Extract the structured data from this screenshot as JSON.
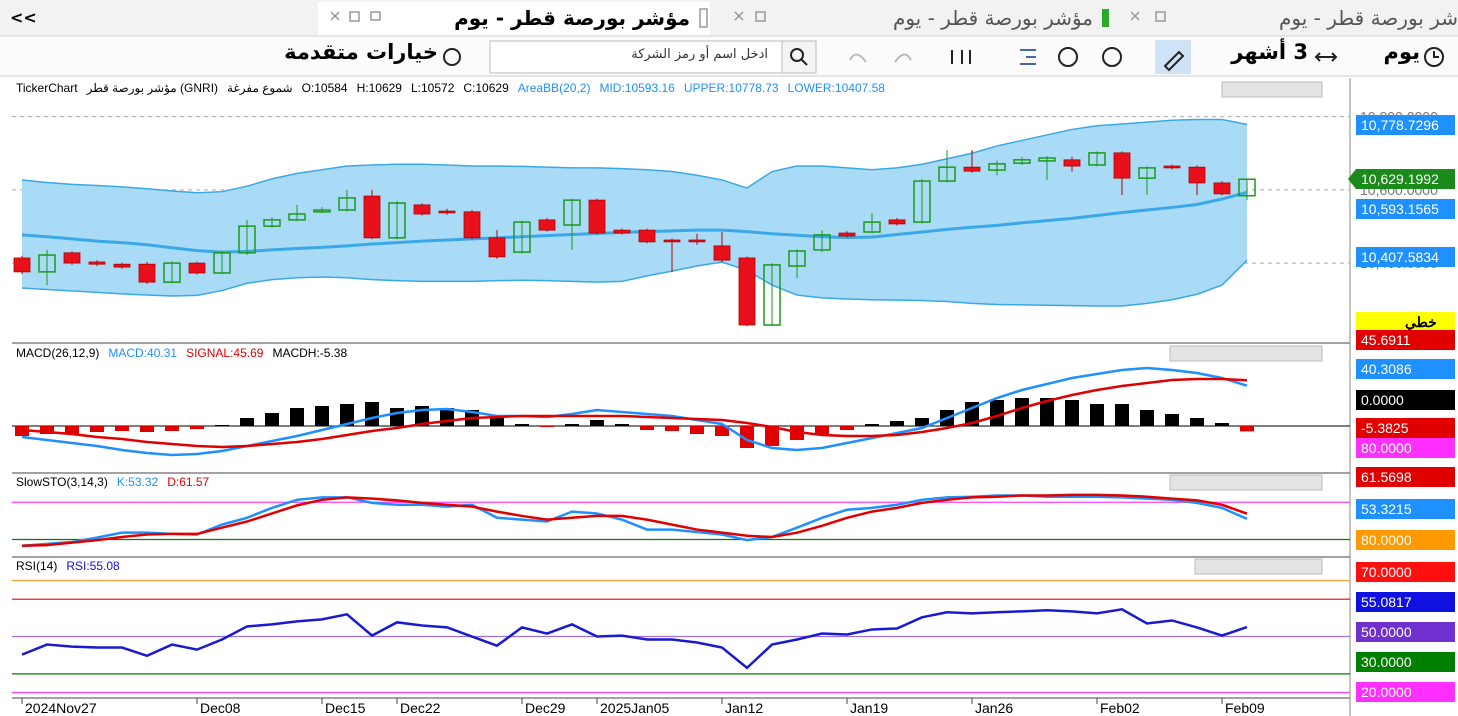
{
  "collapse": "<<",
  "tabs": [
    "مؤشر بورصة قطر - يوم",
    "مؤشر بورصة قطر - يوم",
    "شر بورصة قطر - يوم"
  ],
  "toolbar": {
    "period": "يوم",
    "range": "3 أشهر",
    "search_placeholder": "ادخل اسم أو رمز الشركة",
    "advanced": "خيارات متقدمة"
  },
  "x_labels": [
    "2024Nov27",
    null,
    null,
    null,
    null,
    null,
    null,
    "Dec08",
    null,
    null,
    null,
    null,
    "Dec15",
    null,
    null,
    "Dec22",
    null,
    null,
    null,
    null,
    "Dec29",
    null,
    null,
    "2025Jan05",
    null,
    null,
    null,
    null,
    "Jan12",
    null,
    null,
    null,
    null,
    "Jan19",
    null,
    null,
    null,
    null,
    "Jan26",
    null,
    null,
    null,
    null,
    "Feb02",
    null,
    null,
    null,
    null,
    "Feb09",
    null
  ],
  "price_panel": {
    "legend": [
      {
        "text": "TickerChart",
        "color": "#000000"
      },
      {
        "text": "مؤشر بورصة قطر (GNRI)",
        "color": "#000000"
      },
      {
        "text": "شموع مفرغة",
        "color": "#000000"
      },
      {
        "text": "O:10584",
        "color": "#000000"
      },
      {
        "text": "H:10629",
        "color": "#000000"
      },
      {
        "text": "L:10572",
        "color": "#000000"
      },
      {
        "text": "C:10629",
        "color": "#000000"
      },
      {
        "text": "AreaBB(20,2)",
        "color": "#1e90ff"
      },
      {
        "text": "MID:10593.16",
        "color": "#1e90ff"
      },
      {
        "text": "UPPER:10778.73",
        "color": "#1e90ff"
      },
      {
        "text": "LOWER:10407.58",
        "color": "#1e90ff"
      }
    ],
    "ylim": [
      10190,
      10900
    ],
    "yticks": [
      {
        "value": 10400,
        "label": "10,400.0000"
      },
      {
        "value": 10600,
        "label": "10,600.0000"
      },
      {
        "value": 10800,
        "label": "10,800.0000"
      }
    ],
    "up_color": "#1a9a1a",
    "down_color": "#e8101a",
    "band_color": "#3aa8e8",
    "band_fill": "#a9dbf7",
    "open": [
      10414,
      10376,
      10428,
      10403,
      10397,
      10397,
      10348,
      10400,
      10373,
      10428,
      10501,
      10518,
      10540,
      10545,
      10583,
      10469,
      10559,
      10542,
      10540,
      10469,
      10430,
      10518,
      10504,
      10572,
      10490,
      10490,
      10463,
      10463,
      10447,
      10414,
      10231,
      10392,
      10436,
      10482,
      10485,
      10518,
      10512,
      10624,
      10662,
      10654,
      10673,
      10679,
      10682,
      10668,
      10701,
      10632,
      10665,
      10662,
      10619,
      10584
    ],
    "high": [
      10420,
      10436,
      10432,
      10408,
      10401,
      10403,
      10405,
      10404,
      10432,
      10518,
      10526,
      10559,
      10553,
      10600,
      10600,
      10570,
      10563,
      10548,
      10545,
      10490,
      10516,
      10523,
      10576,
      10576,
      10494,
      10494,
      10467,
      10480,
      10485,
      10418,
      10400,
      10438,
      10490,
      10487,
      10537,
      10523,
      10630,
      10709,
      10709,
      10680,
      10690,
      10692,
      10690,
      10705,
      10705,
      10664,
      10669,
      10667,
      10624,
      10629
    ],
    "low": [
      10370,
      10340,
      10395,
      10392,
      10385,
      10343,
      10345,
      10369,
      10370,
      10422,
      10497,
      10514,
      10536,
      10541,
      10465,
      10465,
      10530,
      10532,
      10465,
      10412,
      10426,
      10486,
      10436,
      10478,
      10478,
      10454,
      10376,
      10450,
      10403,
      10228,
      10228,
      10359,
      10430,
      10470,
      10481,
      10503,
      10508,
      10620,
      10647,
      10640,
      10668,
      10627,
      10650,
      10664,
      10586,
      10586,
      10656,
      10586,
      10585,
      10572
    ],
    "close": [
      10376,
      10422,
      10400,
      10397,
      10389,
      10348,
      10400,
      10373,
      10428,
      10501,
      10518,
      10534,
      10545,
      10578,
      10469,
      10564,
      10534,
      10537,
      10469,
      10417,
      10512,
      10490,
      10572,
      10482,
      10482,
      10458,
      10458,
      10458,
      10408,
      10231,
      10395,
      10433,
      10477,
      10474,
      10512,
      10507,
      10624,
      10662,
      10651,
      10671,
      10682,
      10687,
      10665,
      10701,
      10632,
      10660,
      10660,
      10619,
      10589,
      10629
    ],
    "bb_upper": [
      10627,
      10620,
      10615,
      10612,
      10608,
      10603,
      10597,
      10592,
      10595,
      10610,
      10630,
      10645,
      10655,
      10665,
      10668,
      10670,
      10670,
      10668,
      10665,
      10665,
      10664,
      10662,
      10660,
      10660,
      10658,
      10655,
      10650,
      10640,
      10627,
      10605,
      10650,
      10665,
      10665,
      10660,
      10655,
      10660,
      10670,
      10685,
      10700,
      10720,
      10735,
      10750,
      10765,
      10775,
      10780,
      10785,
      10790,
      10792,
      10792,
      10778.73
    ],
    "bb_mid": [
      10477,
      10472,
      10466,
      10460,
      10456,
      10450,
      10442,
      10434,
      10430,
      10432,
      10436,
      10440,
      10443,
      10447,
      10452,
      10456,
      10460,
      10463,
      10466,
      10469,
      10472,
      10475,
      10478,
      10481,
      10484,
      10486,
      10488,
      10490,
      10490,
      10486,
      10480,
      10476,
      10472,
      10470,
      10471,
      10478,
      10485,
      10492,
      10498,
      10503,
      10510,
      10516,
      10522,
      10530,
      10538,
      10545,
      10552,
      10560,
      10575,
      10593.16
    ],
    "bb_lower": [
      10332,
      10328,
      10324,
      10320,
      10316,
      10313,
      10310,
      10312,
      10325,
      10345,
      10355,
      10360,
      10362,
      10360,
      10355,
      10352,
      10350,
      10350,
      10350,
      10352,
      10353,
      10352,
      10350,
      10348,
      10350,
      10365,
      10378,
      10392,
      10403,
      10380,
      10340,
      10313,
      10305,
      10302,
      10300,
      10299,
      10298,
      10295,
      10290,
      10287,
      10286,
      10285,
      10284,
      10283,
      10283,
      10290,
      10300,
      10315,
      10340,
      10407.58
    ]
  },
  "macd_panel": {
    "legend": [
      {
        "text": "MACD(26,12,9)",
        "color": "#000000"
      },
      {
        "text": "MACD:40.31",
        "color": "#1e90ff"
      },
      {
        "text": "SIGNAL:45.69",
        "color": "#e00000"
      },
      {
        "text": "MACDH:-5.38",
        "color": "#000000"
      }
    ],
    "ylim": [
      -46,
      81
    ],
    "levels": [
      {
        "value": 0,
        "color": "#333333"
      }
    ],
    "hist_up_color": "#000000",
    "hist_down_color": "#e00000",
    "macdh": [
      -10,
      -8,
      -8,
      -6,
      -5,
      -6,
      -5,
      -3,
      1,
      8,
      13,
      18,
      20,
      22,
      24,
      18,
      20,
      18,
      16,
      10,
      2,
      -1,
      2,
      6,
      2,
      -4,
      -5,
      -8,
      -10,
      -22,
      -20,
      -14,
      -8,
      -4,
      2,
      5,
      8,
      16,
      24,
      26,
      28,
      28,
      26,
      22,
      22,
      16,
      12,
      8,
      3,
      -5.38
    ],
    "series": [
      {
        "name": "MACD",
        "color": "#1e90ff",
        "values": [
          -11,
          -14,
          -17,
          -20,
          -24,
          -27,
          -29,
          -28,
          -25,
          -20,
          -15,
          -10,
          -4,
          2,
          8,
          13,
          16,
          17,
          14,
          10,
          10,
          9,
          12,
          16,
          14,
          12,
          10,
          6,
          2,
          -14,
          -22,
          -24,
          -22,
          -17,
          -12,
          -7,
          -2,
          8,
          18,
          28,
          36,
          42,
          48,
          52,
          56,
          58,
          56,
          53,
          48,
          40.31
        ]
      },
      {
        "name": "SIGNAL",
        "color": "#e00000",
        "values": [
          -4,
          -6,
          -8,
          -11,
          -13,
          -16,
          -18,
          -20,
          -21,
          -20,
          -18,
          -16,
          -13,
          -9,
          -5,
          -2,
          2,
          5,
          8,
          9,
          10,
          10,
          10,
          10,
          10,
          9,
          8,
          7,
          6,
          3,
          -1,
          -6,
          -9,
          -10,
          -10,
          -9,
          -6,
          -2,
          3,
          10,
          18,
          25,
          31,
          36,
          40,
          43,
          46,
          47,
          47,
          45.69
        ]
      }
    ]
  },
  "stoch_panel": {
    "legend": [
      {
        "text": "SlowSTO(3,14,3)",
        "color": "#000000"
      },
      {
        "text": "K:53.32",
        "color": "#1e90ff"
      },
      {
        "text": "D:61.57",
        "color": "#e00000"
      }
    ],
    "ylim": [
      -5,
      124
    ],
    "levels": [
      {
        "value": 80,
        "color": "#ff40ff"
      },
      {
        "value": 20,
        "color": "#008000"
      }
    ],
    "series": [
      {
        "name": "K",
        "color": "#1e90ff",
        "values": [
          10,
          13,
          16,
          23,
          31,
          31,
          29,
          28,
          44,
          55,
          71,
          84,
          88,
          88,
          79,
          76,
          76,
          73,
          76,
          55,
          52,
          49,
          65,
          62,
          52,
          36,
          36,
          32,
          28,
          19,
          24,
          39,
          55,
          68,
          71,
          76,
          84,
          88,
          89,
          91,
          91,
          89,
          89,
          89,
          88,
          86,
          84,
          79,
          71,
          53.32
        ]
      },
      {
        "name": "D",
        "color": "#e00000",
        "values": [
          10,
          11,
          15,
          19,
          24,
          28,
          29,
          29,
          39,
          49,
          62,
          75,
          84,
          88,
          86,
          83,
          79,
          76,
          73,
          65,
          58,
          52,
          55,
          58,
          58,
          52,
          44,
          36,
          31,
          26,
          24,
          31,
          42,
          55,
          65,
          71,
          79,
          84,
          88,
          89,
          91,
          91,
          92,
          92,
          91,
          89,
          86,
          83,
          76,
          61.57
        ]
      }
    ]
  },
  "rsi_panel": {
    "legend": [
      {
        "text": "RSI(14)",
        "color": "#000000"
      },
      {
        "text": "RSI:55.08",
        "color": "#1010e0"
      }
    ],
    "ylim": [
      16,
      91
    ],
    "levels": [
      {
        "value": 80,
        "color": "#f5a040"
      },
      {
        "value": 70,
        "color": "#e00000"
      },
      {
        "value": 50,
        "color": "#a070e0"
      },
      {
        "value": 30,
        "color": "#008000"
      },
      {
        "value": 20,
        "color": "#ff40ff"
      }
    ],
    "series": [
      {
        "name": "RSI",
        "color": "#1a1ad0",
        "values": [
          40.3,
          45.7,
          44.6,
          44.1,
          44.1,
          39.7,
          45.7,
          43,
          48.4,
          55.4,
          56.5,
          58.1,
          59.2,
          61.9,
          50.5,
          57.6,
          55.9,
          54.9,
          50,
          45.1,
          54.9,
          51.6,
          56.5,
          50,
          50.5,
          48.4,
          48.4,
          46.8,
          44.1,
          33.2,
          45.7,
          48.4,
          51.6,
          51.1,
          53.8,
          54.3,
          60.3,
          63,
          62.4,
          63,
          63.5,
          64.1,
          63.5,
          62.4,
          64.6,
          57,
          58.6,
          54.9,
          50.5,
          55.08
        ]
      }
    ]
  },
  "right_axis_labels": [
    {
      "text": "10,778.7296",
      "color": "#1e90ff"
    },
    {
      "text": "10,629.1992",
      "color": "#1a8a1a"
    },
    {
      "text": "10,593.1565",
      "color": "#1e90ff"
    },
    {
      "text": "10,407.5834",
      "color": "#1e90ff"
    },
    {
      "text": "خطي",
      "color": "#ffff00"
    },
    {
      "text": "45.6911",
      "color": "#e00000"
    },
    {
      "text": "40.3086",
      "color": "#1e90ff"
    },
    {
      "text": "0.0000",
      "color": "#000000"
    },
    {
      "text": "-5.3825",
      "color": "#e00000"
    },
    {
      "text": "80.0000",
      "color": "#ff30ff"
    },
    {
      "text": "61.5698",
      "color": "#e00000"
    },
    {
      "text": "53.3215",
      "color": "#1e90ff"
    },
    {
      "text": "80.0000",
      "color": "#ff9900"
    },
    {
      "text": "70.0000",
      "color": "#ff1010"
    },
    {
      "text": "55.0817",
      "color": "#1010e0"
    },
    {
      "text": "50.0000",
      "color": "#7030d0"
    },
    {
      "text": "30.0000",
      "color": "#008000"
    },
    {
      "text": "20.0000",
      "color": "#ff30ff"
    }
  ]
}
